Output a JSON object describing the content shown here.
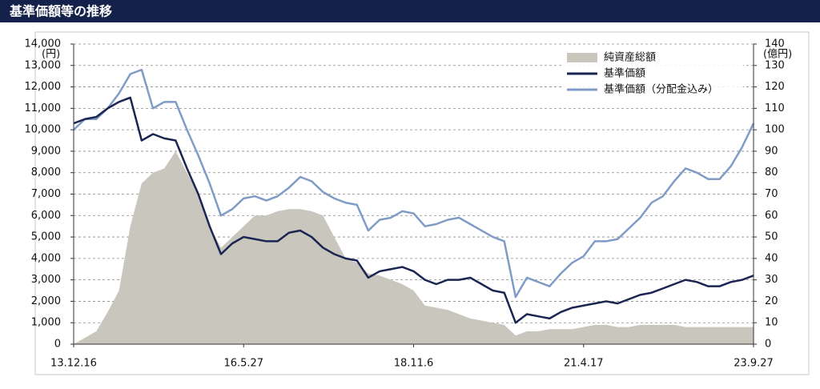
{
  "chart_data": {
    "type": "line",
    "title": "基準価額等の推移",
    "ylabel": "(円)",
    "y2label": "(億円)",
    "categories": [
      "13.12.16",
      null,
      null,
      null,
      null,
      null,
      null,
      null,
      null,
      null,
      null,
      null,
      null,
      null,
      null,
      "16.5.27",
      null,
      null,
      null,
      null,
      null,
      null,
      null,
      null,
      null,
      null,
      null,
      null,
      null,
      null,
      "18.11.6",
      null,
      null,
      null,
      null,
      null,
      null,
      null,
      null,
      null,
      null,
      null,
      null,
      null,
      null,
      "21.4.17",
      null,
      null,
      null,
      null,
      null,
      null,
      null,
      null,
      null,
      null,
      null,
      null,
      null,
      null,
      "23.9.27"
    ],
    "series": [
      {
        "name": "純資産総額",
        "color": "#c9c6be",
        "kind": "area",
        "axis": "y2",
        "values": [
          0,
          3,
          6,
          15,
          25,
          55,
          75,
          80,
          82,
          90,
          80,
          70,
          55,
          45,
          50,
          55,
          60,
          60,
          62,
          63,
          63,
          62,
          60,
          50,
          40,
          38,
          33,
          32,
          30,
          28,
          25,
          18,
          17,
          16,
          14,
          12,
          11,
          10,
          9,
          4,
          6,
          6,
          7,
          7,
          7,
          8,
          9,
          9,
          8,
          8,
          9,
          9,
          9,
          9,
          8,
          8,
          8,
          8,
          8,
          8,
          8
        ]
      },
      {
        "name": "基準価額",
        "color": "#1a2552",
        "kind": "line",
        "values": [
          10300,
          10500,
          10600,
          11000,
          11300,
          11500,
          9500,
          9800,
          9600,
          9500,
          8200,
          7000,
          5500,
          4200,
          4700,
          5000,
          4900,
          4800,
          4800,
          5200,
          5300,
          5000,
          4500,
          4200,
          4000,
          3900,
          3100,
          3400,
          3500,
          3600,
          3400,
          3000,
          2800,
          3000,
          3000,
          3100,
          2800,
          2500,
          2400,
          1000,
          1400,
          1300,
          1200,
          1500,
          1700,
          1800,
          1900,
          2000,
          1900,
          2100,
          2300,
          2400,
          2600,
          2800,
          3000,
          2900,
          2700,
          2700,
          2900,
          3000,
          3200
        ]
      },
      {
        "name": "基準価額（分配金込み）",
        "color": "#7f9cc6",
        "kind": "line",
        "values": [
          10000,
          10500,
          10500,
          11000,
          11700,
          12600,
          12800,
          11000,
          11300,
          11300,
          10000,
          8800,
          7500,
          6000,
          6300,
          6800,
          6900,
          6700,
          6900,
          7300,
          7800,
          7600,
          7100,
          6800,
          6600,
          6500,
          5300,
          5800,
          5900,
          6200,
          6100,
          5500,
          5600,
          5800,
          5900,
          5600,
          5300,
          5000,
          4800,
          2200,
          3100,
          2900,
          2700,
          3300,
          3800,
          4100,
          4800,
          4800,
          4900,
          5400,
          5900,
          6600,
          6900,
          7600,
          8200,
          8000,
          7700,
          7700,
          8300,
          9200,
          10300
        ]
      }
    ],
    "ylim": [
      0,
      14000
    ],
    "yticks": [
      0,
      {
        "value": 1000,
        "label": "1,000"
      },
      {
        "value": 2000,
        "label": "2,000"
      },
      {
        "value": 3000,
        "label": "3,000"
      },
      {
        "value": 4000,
        "label": "4,000"
      },
      {
        "value": 5000,
        "label": "5,000"
      },
      {
        "value": 6000,
        "label": "6,000"
      },
      {
        "value": 7000,
        "label": "7,000"
      },
      {
        "value": 8000,
        "label": "8,000"
      },
      {
        "value": 9000,
        "label": "9,000"
      },
      {
        "value": 10000,
        "label": "10,000"
      },
      {
        "value": 11000,
        "label": "11,000"
      },
      {
        "value": 12000,
        "label": "12,000"
      },
      {
        "value": 13000,
        "label": "13,000"
      },
      {
        "value": 14000,
        "label": "14,000"
      }
    ],
    "y2lim": [
      0,
      140
    ],
    "y2ticks": [
      0,
      10,
      20,
      30,
      40,
      50,
      60,
      70,
      80,
      90,
      100,
      110,
      120,
      130,
      140
    ],
    "grid": true,
    "legend": "upper right"
  }
}
